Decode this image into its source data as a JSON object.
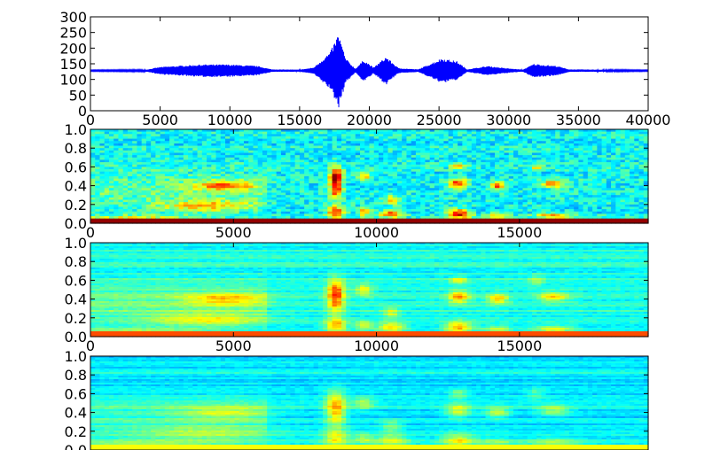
{
  "chart_data": [
    {
      "type": "line",
      "title": "",
      "xlabel": "",
      "ylabel": "",
      "xlim": [
        0,
        40000
      ],
      "ylim": [
        0,
        300
      ],
      "x_ticks": [
        "0",
        "5000",
        "10000",
        "15000",
        "20000",
        "25000",
        "30000",
        "35000",
        "40000"
      ],
      "y_ticks": [
        "0",
        "50",
        "100",
        "150",
        "200",
        "250",
        "300"
      ],
      "baseline": 128,
      "line_color": "#0000ff",
      "envelope": [
        {
          "x": 0,
          "amp": 2
        },
        {
          "x": 4000,
          "amp": 3
        },
        {
          "x": 5000,
          "amp": 12
        },
        {
          "x": 8000,
          "amp": 20
        },
        {
          "x": 10000,
          "amp": 20
        },
        {
          "x": 12000,
          "amp": 15
        },
        {
          "x": 13000,
          "amp": 4
        },
        {
          "x": 15000,
          "amp": 3
        },
        {
          "x": 16000,
          "amp": 10
        },
        {
          "x": 17200,
          "amp": 60
        },
        {
          "x": 17800,
          "amp": 120
        },
        {
          "x": 18300,
          "amp": 40
        },
        {
          "x": 19000,
          "amp": 6
        },
        {
          "x": 19600,
          "amp": 35
        },
        {
          "x": 20300,
          "amp": 10
        },
        {
          "x": 21200,
          "amp": 45
        },
        {
          "x": 22100,
          "amp": 8
        },
        {
          "x": 23500,
          "amp": 4
        },
        {
          "x": 25200,
          "amp": 40
        },
        {
          "x": 26300,
          "amp": 30
        },
        {
          "x": 27000,
          "amp": 4
        },
        {
          "x": 28500,
          "amp": 15
        },
        {
          "x": 29800,
          "amp": 8
        },
        {
          "x": 31000,
          "amp": 3
        },
        {
          "x": 31800,
          "amp": 22
        },
        {
          "x": 33500,
          "amp": 15
        },
        {
          "x": 34300,
          "amp": 4
        },
        {
          "x": 40000,
          "amp": 2
        }
      ]
    },
    {
      "type": "heatmap",
      "title": "",
      "xlim": [
        0,
        19500
      ],
      "ylim": [
        0,
        1.0
      ],
      "x_ticks": [
        "0",
        "5000",
        "10000",
        "15000"
      ],
      "y_ticks": [
        "0.0",
        "0.2",
        "0.4",
        "0.6",
        "0.8",
        "1.0"
      ],
      "colormap": "jet"
    },
    {
      "type": "heatmap",
      "title": "",
      "xlim": [
        0,
        19500
      ],
      "ylim": [
        0,
        1.0
      ],
      "x_ticks": [
        "0",
        "5000",
        "10000",
        "15000"
      ],
      "y_ticks": [
        "0.0",
        "0.2",
        "0.4",
        "0.6",
        "0.8",
        "1.0"
      ],
      "colormap": "jet"
    },
    {
      "type": "heatmap",
      "title": "",
      "xlim": [
        0,
        19500
      ],
      "ylim": [
        0,
        1.0
      ],
      "x_ticks": [],
      "y_ticks": [
        "0.0",
        "0.2",
        "0.4",
        "0.6",
        "0.8",
        "1.0"
      ],
      "colormap": "jet"
    }
  ]
}
